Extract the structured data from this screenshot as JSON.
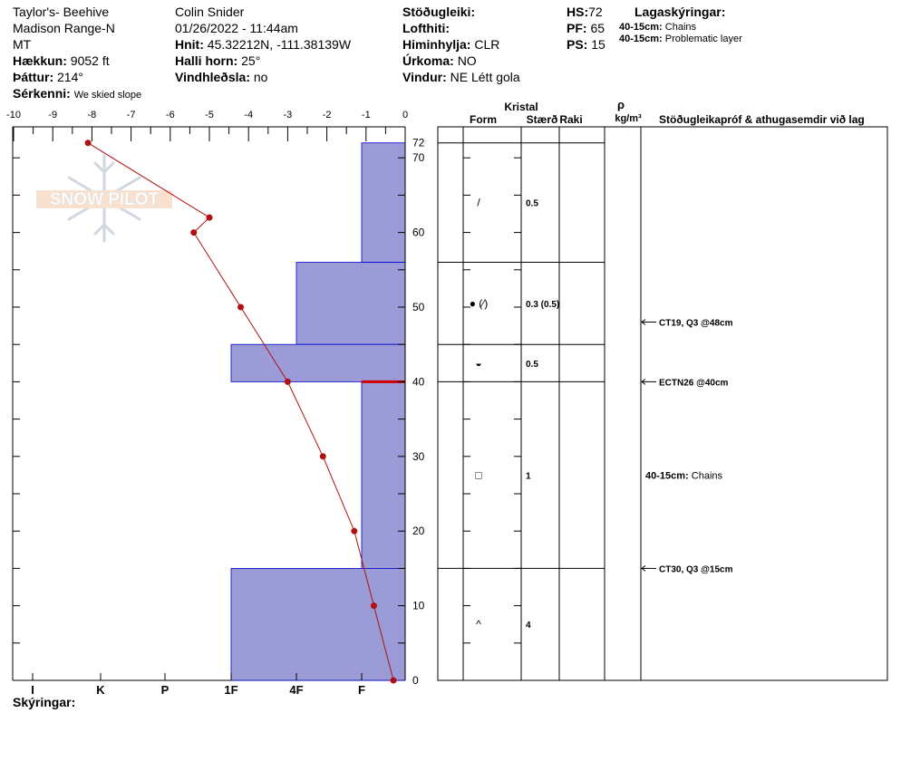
{
  "header": {
    "location": "Taylor's- Beehive",
    "range": "Madison Range-N",
    "state": "MT",
    "elevation_label": "Hækkun:",
    "elevation_value": "9052 ft",
    "aspect_label": "Þáttur:",
    "aspect_value": "214°",
    "notes_label": "Sérkenni:",
    "notes_value": "We skied slope",
    "observer": "Colin Snider",
    "datetime": "01/26/2022 - 11:44am",
    "coords_label": "Hnit:",
    "coords_value": "45.32212N, -111.38139W",
    "slope_label": "Halli horn:",
    "slope_value": "25°",
    "wind_loading_label": "Vindhleðsla:",
    "wind_loading_value": "no",
    "stability_label": "Stöðugleiki:",
    "air_temp_label": "Lofthiti:",
    "sky_label": "Himinhylja:",
    "sky_value": "CLR",
    "precip_label": "Úrkoma:",
    "precip_value": "NO",
    "wind_label": "Vindur:",
    "wind_value": "NE Létt gola",
    "hs_label": "HS:",
    "hs_value": "72",
    "pf_label": "PF:",
    "pf_value": "65",
    "ps_label": "PS:",
    "ps_value": "15",
    "layers_title": "Lagaskýringar:",
    "layer_notes": [
      {
        "range": "40-15cm:",
        "text": "Chains"
      },
      {
        "range": "40-15cm:",
        "text": "Problematic layer"
      }
    ]
  },
  "footer": {
    "notes_label": "Skýringar:"
  },
  "logo_text": "SNOW PILOT",
  "colors": {
    "hardness_fill": "#9b9bd7",
    "hardness_edge": "#0000cc",
    "temp_line": "#b01010",
    "layer_mark": "#cc0000"
  },
  "table": {
    "crystal_header": "Kristal",
    "form_header": "Form",
    "size_header": "Stærð",
    "moisture_header": "Raki",
    "rho_header": "ρ",
    "density_unit": "kg/m³",
    "tests_header": "Stöðugleikapróf & athugasemdir við lag",
    "layers": [
      {
        "top": 72,
        "bottom": 56,
        "form": "/",
        "size": "0.5"
      },
      {
        "top": 56,
        "bottom": 45,
        "form": "● (⁄)",
        "size": "0.3 (0.5)"
      },
      {
        "top": 45,
        "bottom": 40,
        "form": "◒",
        "size": "0.5"
      },
      {
        "top": 40,
        "bottom": 15,
        "form": "□",
        "size": "1"
      },
      {
        "top": 15,
        "bottom": 0,
        "form": "^",
        "size": "4"
      }
    ],
    "tests": [
      {
        "depth": 48,
        "text": "CT19, Q3 @48cm"
      },
      {
        "depth": 40,
        "text": "ECTN26 @40cm"
      },
      {
        "depth": 15,
        "text": "CT30, Q3 @15cm"
      }
    ],
    "layer_comment": {
      "depth": 27.5,
      "range": "40-15cm:",
      "text": "Chains"
    }
  },
  "chart_data": {
    "type": "snow-profile",
    "temperature_axis": {
      "ticks": [
        "-10",
        "-9",
        "-8",
        "-7",
        "-6",
        "-5",
        "-4",
        "-3",
        "-2",
        "-1",
        "0"
      ],
      "range": [
        -10,
        0
      ]
    },
    "height_axis": {
      "ticks": [
        "72",
        "70",
        "60",
        "50",
        "40",
        "30",
        "20",
        "10",
        "0"
      ],
      "range": [
        0,
        72
      ]
    },
    "hardness_axis": {
      "labels": [
        "I",
        "K",
        "P",
        "1F",
        "4F",
        "F"
      ],
      "note": "hand hardness scale, bars extend from right (F) toward left"
    },
    "temperature_profile": [
      {
        "height": 72,
        "temp": -8.1
      },
      {
        "height": 62,
        "temp": -5.0
      },
      {
        "height": 60,
        "temp": -5.4
      },
      {
        "height": 50,
        "temp": -4.2
      },
      {
        "height": 40,
        "temp": -3.0
      },
      {
        "height": 30,
        "temp": -2.1
      },
      {
        "height": 20,
        "temp": -1.3
      },
      {
        "height": 10,
        "temp": -0.8
      },
      {
        "height": 0,
        "temp": -0.3
      }
    ],
    "hardness_layers": [
      {
        "bottom": 56,
        "top": 72,
        "hardness": "F"
      },
      {
        "bottom": 45,
        "top": 56,
        "hardness": "4F"
      },
      {
        "bottom": 40,
        "top": 45,
        "hardness": "1F"
      },
      {
        "bottom": 15,
        "top": 40,
        "hardness": "F"
      },
      {
        "bottom": 0,
        "top": 15,
        "hardness": "1F"
      }
    ],
    "problem_layer_height": 40
  }
}
